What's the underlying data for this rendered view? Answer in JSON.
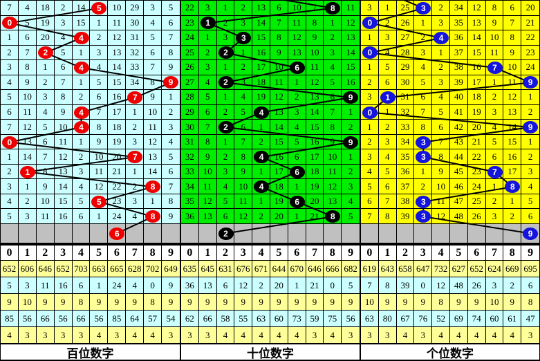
{
  "chart_data": {
    "type": "table",
    "title": "3D lottery digit trend chart (15 periods)",
    "positions": [
      "百位数字",
      "十位数字",
      "个位数字"
    ],
    "drawn_digits": {
      "百位数字": [
        5,
        0,
        4,
        2,
        4,
        9,
        7,
        4,
        4,
        0,
        7,
        1,
        8,
        5,
        8
      ],
      "十位数字": [
        8,
        1,
        3,
        2,
        6,
        2,
        9,
        4,
        2,
        9,
        4,
        6,
        4,
        6,
        8
      ],
      "个位数字": [
        3,
        0,
        4,
        0,
        7,
        9,
        1,
        0,
        9,
        3,
        3,
        7,
        8,
        3,
        3
      ]
    },
    "pending_row_digits": {
      "百位数字": 6,
      "十位数字": 2,
      "个位数字": 9
    }
  },
  "board": {
    "digit_headers": [
      "0",
      "1",
      "2",
      "3",
      "4",
      "5",
      "6",
      "7",
      "8",
      "9"
    ],
    "gray_row_color": "#C0C0C0",
    "grid_line_color": "#000000",
    "line_color": "#000000",
    "stat_row_colors": [
      "#FFFF99",
      "#CCFFFF",
      "#FFFF99",
      "#CCFFFF",
      "#FFFF99"
    ],
    "header_bg": "#FFFFFF",
    "panels": [
      {
        "label": "百位数字",
        "bg": "#CCFFFF",
        "ball_color": "#EE0000",
        "rows": [
          [
            7,
            4,
            18,
            2,
            14,
            5,
            10,
            29,
            3,
            5
          ],
          [
            0,
            5,
            19,
            3,
            15,
            1,
            11,
            30,
            4,
            6
          ],
          [
            1,
            6,
            20,
            4,
            4,
            2,
            12,
            31,
            5,
            7
          ],
          [
            2,
            7,
            2,
            5,
            1,
            3,
            13,
            32,
            6,
            8
          ],
          [
            3,
            8,
            1,
            6,
            4,
            4,
            14,
            33,
            7,
            9
          ],
          [
            4,
            9,
            2,
            7,
            1,
            5,
            15,
            34,
            8,
            9
          ],
          [
            5,
            10,
            3,
            8,
            2,
            6,
            16,
            7,
            9,
            1
          ],
          [
            6,
            11,
            4,
            9,
            4,
            7,
            17,
            1,
            10,
            2
          ],
          [
            7,
            12,
            5,
            10,
            4,
            8,
            18,
            2,
            11,
            3
          ],
          [
            0,
            13,
            6,
            11,
            1,
            9,
            19,
            3,
            12,
            4
          ],
          [
            1,
            14,
            7,
            12,
            2,
            10,
            20,
            7,
            13,
            5
          ],
          [
            2,
            1,
            8,
            13,
            3,
            11,
            21,
            1,
            14,
            6
          ],
          [
            3,
            1,
            9,
            14,
            4,
            12,
            22,
            2,
            8,
            7
          ],
          [
            4,
            2,
            10,
            15,
            5,
            5,
            23,
            3,
            1,
            8
          ],
          [
            5,
            3,
            11,
            16,
            6,
            1,
            24,
            4,
            8,
            9
          ]
        ],
        "ball_cols": [
          5,
          0,
          4,
          2,
          4,
          9,
          7,
          4,
          4,
          0,
          7,
          1,
          8,
          5,
          8
        ],
        "pre_ball_col": null,
        "gray_ball_col": 6,
        "stats": [
          [
            652,
            606,
            646,
            652,
            703,
            663,
            665,
            628,
            702,
            649
          ],
          [
            5,
            3,
            11,
            16,
            6,
            1,
            24,
            4,
            0,
            9
          ],
          [
            9,
            10,
            9,
            9,
            8,
            9,
            9,
            9,
            8,
            9
          ],
          [
            85,
            56,
            66,
            56,
            66,
            56,
            85,
            64,
            57,
            54
          ],
          [
            4,
            3,
            3,
            3,
            3,
            4,
            3,
            4,
            4,
            3
          ]
        ]
      },
      {
        "label": "十位数字",
        "bg": "#00EE00",
        "ball_color": "#000000",
        "rows": [
          [
            22,
            3,
            1,
            2,
            13,
            6,
            10,
            7,
            8,
            11
          ],
          [
            23,
            1,
            2,
            3,
            14,
            7,
            11,
            8,
            1,
            12
          ],
          [
            24,
            1,
            3,
            3,
            15,
            8,
            12,
            9,
            2,
            13
          ],
          [
            25,
            2,
            2,
            1,
            16,
            9,
            13,
            10,
            3,
            14
          ],
          [
            26,
            3,
            1,
            2,
            17,
            10,
            6,
            11,
            4,
            15
          ],
          [
            27,
            4,
            2,
            3,
            18,
            11,
            1,
            12,
            5,
            16
          ],
          [
            28,
            5,
            1,
            4,
            19,
            12,
            2,
            13,
            6,
            9
          ],
          [
            29,
            6,
            2,
            5,
            4,
            13,
            3,
            14,
            7,
            1
          ],
          [
            30,
            7,
            2,
            6,
            1,
            14,
            4,
            15,
            8,
            2
          ],
          [
            31,
            8,
            1,
            7,
            2,
            15,
            5,
            16,
            9,
            9
          ],
          [
            32,
            9,
            2,
            8,
            4,
            16,
            6,
            17,
            10,
            1
          ],
          [
            33,
            10,
            3,
            9,
            1,
            17,
            6,
            18,
            11,
            2
          ],
          [
            34,
            11,
            4,
            10,
            4,
            18,
            1,
            19,
            12,
            3
          ],
          [
            35,
            12,
            5,
            11,
            1,
            19,
            6,
            20,
            13,
            4
          ],
          [
            36,
            13,
            6,
            12,
            2,
            20,
            1,
            21,
            8,
            5
          ]
        ],
        "ball_cols": [
          8,
          1,
          3,
          2,
          6,
          2,
          9,
          4,
          2,
          9,
          4,
          6,
          4,
          6,
          8
        ],
        "pre_ball_col": 3,
        "gray_ball_col": 2,
        "stats": [
          [
            635,
            645,
            631,
            676,
            671,
            644,
            670,
            646,
            666,
            682
          ],
          [
            36,
            13,
            6,
            12,
            2,
            20,
            1,
            21,
            0,
            5
          ],
          [
            9,
            9,
            9,
            9,
            9,
            9,
            9,
            9,
            9,
            9
          ],
          [
            62,
            66,
            58,
            55,
            63,
            60,
            73,
            59,
            75,
            56
          ],
          [
            3,
            3,
            4,
            4,
            4,
            4,
            4,
            3,
            4,
            3
          ]
        ]
      },
      {
        "label": "个位数字",
        "bg": "#FFFF00",
        "ball_color": "#1414DD",
        "rows": [
          [
            3,
            1,
            25,
            3,
            2,
            34,
            12,
            8,
            6,
            20
          ],
          [
            0,
            2,
            26,
            1,
            3,
            35,
            13,
            9,
            7,
            21
          ],
          [
            1,
            3,
            27,
            2,
            4,
            36,
            14,
            10,
            8,
            22
          ],
          [
            0,
            4,
            28,
            3,
            1,
            37,
            15,
            11,
            9,
            23
          ],
          [
            1,
            5,
            29,
            4,
            2,
            38,
            16,
            7,
            10,
            24
          ],
          [
            2,
            6,
            30,
            5,
            3,
            39,
            17,
            1,
            11,
            9
          ],
          [
            3,
            1,
            31,
            6,
            4,
            40,
            18,
            2,
            12,
            1
          ],
          [
            0,
            1,
            32,
            7,
            5,
            41,
            19,
            3,
            13,
            2
          ],
          [
            1,
            2,
            33,
            8,
            6,
            42,
            20,
            4,
            14,
            9
          ],
          [
            2,
            3,
            34,
            3,
            7,
            43,
            21,
            5,
            15,
            1
          ],
          [
            3,
            4,
            35,
            3,
            8,
            44,
            22,
            6,
            16,
            2
          ],
          [
            4,
            5,
            36,
            1,
            9,
            45,
            23,
            7,
            17,
            3
          ],
          [
            5,
            6,
            37,
            2,
            10,
            46,
            24,
            1,
            8,
            4
          ],
          [
            6,
            7,
            38,
            3,
            11,
            47,
            25,
            2,
            1,
            5
          ],
          [
            7,
            8,
            39,
            3,
            12,
            48,
            26,
            3,
            2,
            6
          ]
        ],
        "ball_cols": [
          3,
          0,
          4,
          0,
          7,
          9,
          1,
          0,
          9,
          3,
          3,
          7,
          8,
          3,
          3
        ],
        "pre_ball_col": 1,
        "gray_ball_col": 9,
        "stats": [
          [
            619,
            643,
            658,
            647,
            732,
            627,
            652,
            624,
            669,
            695
          ],
          [
            7,
            8,
            39,
            0,
            12,
            48,
            26,
            3,
            2,
            6
          ],
          [
            10,
            9,
            9,
            9,
            8,
            9,
            9,
            10,
            9,
            8
          ],
          [
            63,
            80,
            67,
            76,
            52,
            69,
            74,
            60,
            61,
            47
          ],
          [
            3,
            3,
            4,
            3,
            4,
            4,
            4,
            4,
            4,
            3
          ]
        ]
      }
    ]
  }
}
